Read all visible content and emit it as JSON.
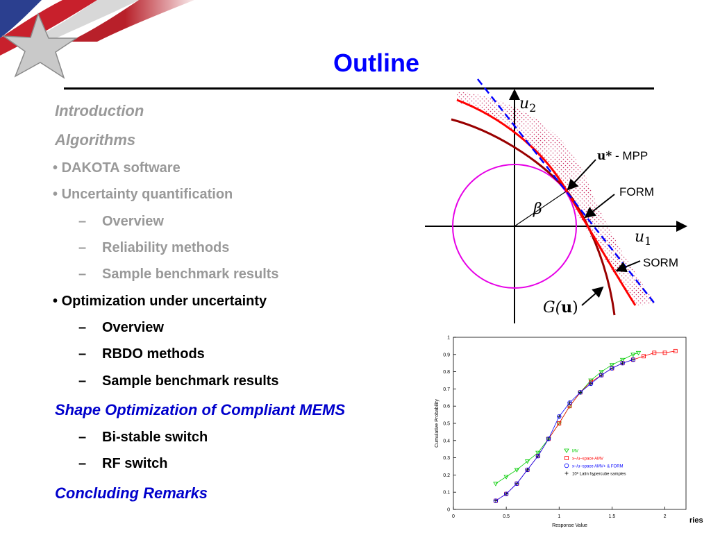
{
  "slide": {
    "title": "Outline",
    "brand_text": "ries"
  },
  "outline": {
    "introduction": "Introduction",
    "algorithms": "Algorithms",
    "dakota": "DAKOTA software",
    "uq": "Uncertainty quantification",
    "uq_overview": "Overview",
    "uq_reliability": "Reliability methods",
    "uq_benchmark": "Sample benchmark results",
    "ouu": "Optimization under uncertainty",
    "ouu_overview": "Overview",
    "ouu_rbdo": "RBDO methods",
    "ouu_benchmark": "Sample benchmark results",
    "shape_opt": "Shape Optimization of Compliant MEMS",
    "bistable": "Bi-stable switch",
    "rf_switch": "RF switch",
    "concluding": "Concluding Remarks"
  },
  "diagram": {
    "axis_u2": "u",
    "axis_u2_sub": "2",
    "axis_u1": "u",
    "axis_u1_sub": "1",
    "mpp_star": "u*",
    "mpp_label": "- MPP",
    "form_label": "FORM",
    "sorm_label": "SORM",
    "beta_label": "β",
    "g_label_g": "G(",
    "g_label_u": "u",
    "g_label_close": ")"
  },
  "colors": {
    "title": "#0000ff",
    "form_curve": "#ff0000",
    "sorm_curve": "#990000",
    "circle": "#e600e6",
    "tangent": "#0000ff"
  },
  "chart_data": {
    "type": "line",
    "title": "",
    "xlabel": "Response Value",
    "ylabel": "Cumulative Probability",
    "xlim": [
      0,
      2.2
    ],
    "ylim": [
      0,
      1
    ],
    "xticks": [
      "0",
      "0.5",
      "1",
      "1.5",
      "2"
    ],
    "yticks": [
      "0",
      "0.1",
      "0.2",
      "0.3",
      "0.4",
      "0.5",
      "0.6",
      "0.7",
      "0.8",
      "0.9",
      "1"
    ],
    "legend_position": "bottom-right",
    "series": [
      {
        "name": "MV",
        "color": "#00cc00",
        "marker": "triangle",
        "x": [
          0.4,
          0.5,
          0.6,
          0.7,
          0.8,
          0.9,
          1.0,
          1.1,
          1.2,
          1.3,
          1.4,
          1.5,
          1.6,
          1.7,
          1.75
        ],
        "y": [
          0.15,
          0.19,
          0.23,
          0.28,
          0.33,
          0.41,
          0.5,
          0.6,
          0.68,
          0.75,
          0.8,
          0.84,
          0.87,
          0.9,
          0.91
        ]
      },
      {
        "name": "x–/u–space AMV",
        "color": "#ff0000",
        "marker": "square",
        "x": [
          0.4,
          0.5,
          0.6,
          0.7,
          0.8,
          0.9,
          1.0,
          1.1,
          1.2,
          1.3,
          1.4,
          1.5,
          1.6,
          1.7,
          1.8,
          1.9,
          2.0,
          2.1
        ],
        "y": [
          0.05,
          0.09,
          0.15,
          0.23,
          0.31,
          0.41,
          0.5,
          0.6,
          0.68,
          0.74,
          0.78,
          0.82,
          0.85,
          0.87,
          0.89,
          0.91,
          0.91,
          0.92
        ]
      },
      {
        "name": "x–/u–space AMV+ & FORM",
        "color": "#0000ff",
        "marker": "circle",
        "x": [
          0.4,
          0.5,
          0.6,
          0.7,
          0.8,
          0.9,
          1.0,
          1.1,
          1.2,
          1.3,
          1.4,
          1.5,
          1.6,
          1.7
        ],
        "y": [
          0.05,
          0.09,
          0.15,
          0.23,
          0.31,
          0.41,
          0.54,
          0.62,
          0.68,
          0.73,
          0.78,
          0.82,
          0.85,
          0.87
        ]
      },
      {
        "name": "10⁶ Latin hypercube samples",
        "color": "#000000",
        "marker": "plus",
        "x": [
          0.4,
          0.5,
          0.6,
          0.7,
          0.8,
          0.9,
          1.0,
          1.1,
          1.2,
          1.3,
          1.4,
          1.5,
          1.6,
          1.7
        ],
        "y": [
          0.05,
          0.09,
          0.15,
          0.23,
          0.31,
          0.41,
          0.54,
          0.62,
          0.68,
          0.73,
          0.78,
          0.82,
          0.85,
          0.87
        ]
      }
    ]
  }
}
